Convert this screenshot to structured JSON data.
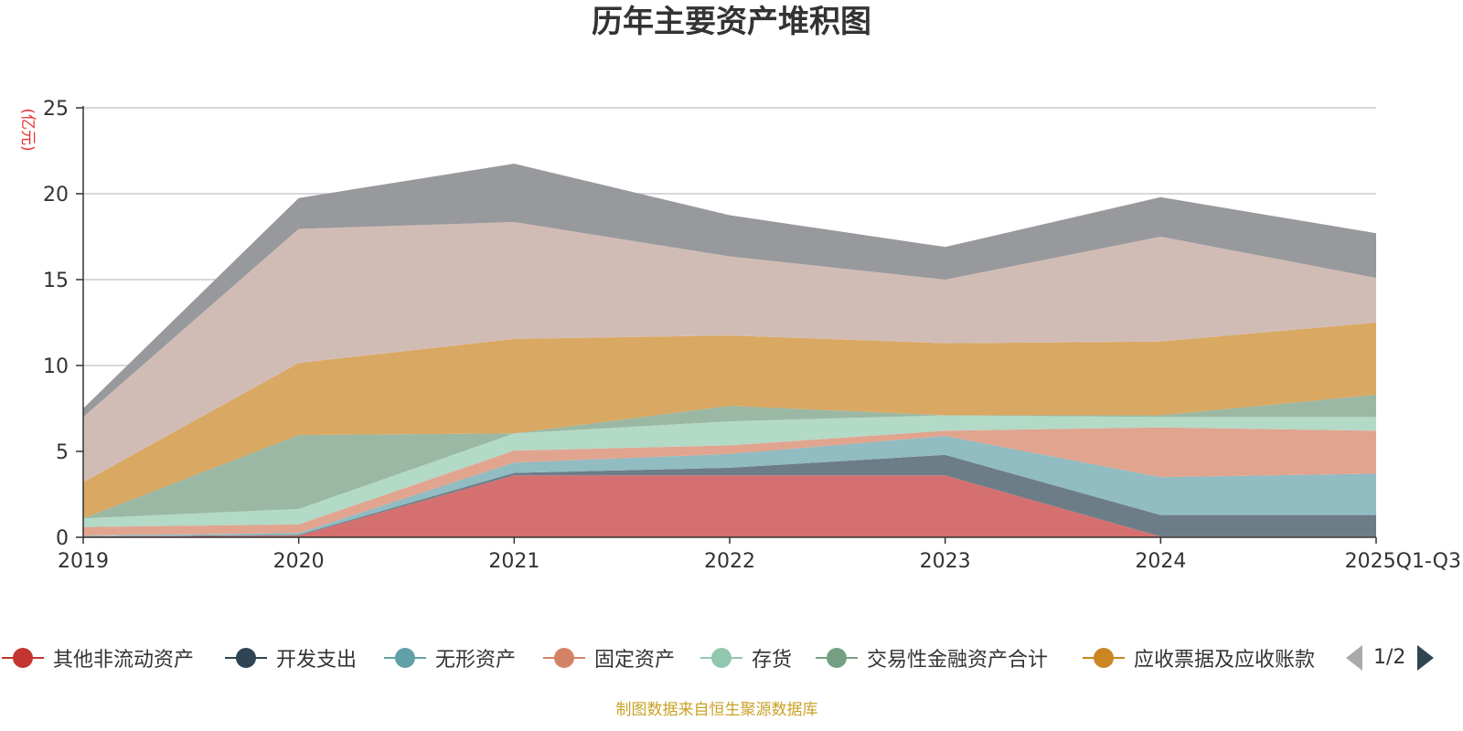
{
  "chart_data": {
    "type": "area",
    "stacked": true,
    "title": "历年主要资产堆积图",
    "ylabel": "(亿元)",
    "xlabel": "",
    "ylim": [
      0,
      25
    ],
    "yticks": [
      0,
      5,
      10,
      15,
      20,
      25
    ],
    "grid": true,
    "categories": [
      "2019",
      "2020",
      "2021",
      "2022",
      "2023",
      "2024",
      "2025Q1-Q3"
    ],
    "series": [
      {
        "name": "其他非流动资产",
        "color": "#c23531",
        "area_color": "#d4706f",
        "values": [
          0.05,
          0.1,
          3.6,
          3.6,
          3.6,
          0.05,
          0.05
        ]
      },
      {
        "name": "开发支出",
        "color": "#2f4554",
        "area_color": "#6d7d88",
        "values": [
          0.0,
          0.05,
          0.15,
          0.45,
          1.2,
          1.25,
          1.25
        ]
      },
      {
        "name": "无形资产",
        "color": "#61a0a8",
        "area_color": "#90bcc2",
        "values": [
          0.05,
          0.1,
          0.6,
          0.8,
          1.1,
          2.2,
          2.4
        ]
      },
      {
        "name": "固定资产",
        "color": "#d48265",
        "area_color": "#e1a48f",
        "values": [
          0.5,
          0.5,
          0.7,
          0.5,
          0.3,
          2.9,
          2.5
        ]
      },
      {
        "name": "存货",
        "color": "#91c7ae",
        "area_color": "#b3d9c7",
        "values": [
          0.5,
          0.9,
          1.0,
          1.4,
          0.9,
          0.6,
          0.8
        ]
      },
      {
        "name": "交易性金融资产合计",
        "color": "#749f83",
        "area_color": "#9ab8a4",
        "values": [
          0.0,
          4.3,
          0.0,
          0.9,
          0.0,
          0.1,
          1.3
        ]
      },
      {
        "name": "应收票据及应收账款",
        "color": "#ca8622",
        "area_color": "#d9a862",
        "values": [
          2.1,
          4.2,
          5.5,
          4.1,
          4.2,
          4.3,
          4.2
        ]
      },
      {
        "name": "",
        "color": "#bda29a",
        "area_color": "#d1bcb5",
        "values": [
          3.8,
          7.8,
          6.8,
          4.6,
          3.7,
          6.1,
          2.6
        ]
      },
      {
        "name": "",
        "color": "#6e7074",
        "area_color": "#98999c",
        "values": [
          0.5,
          1.8,
          3.4,
          2.4,
          1.9,
          2.3,
          2.6
        ]
      }
    ]
  },
  "legend": {
    "items": [
      {
        "label": "其他非流动资产",
        "color": "#c23531"
      },
      {
        "label": "开发支出",
        "color": "#2f4554"
      },
      {
        "label": "无形资产",
        "color": "#61a0a8"
      },
      {
        "label": "固定资产",
        "color": "#d48265"
      },
      {
        "label": "存货",
        "color": "#91c7ae"
      },
      {
        "label": "交易性金融资产合计",
        "color": "#749f83"
      },
      {
        "label": "应收票据及应收账款",
        "color": "#ca8622"
      }
    ],
    "page": "1/2"
  },
  "footer": {
    "source": "制图数据来自恒生聚源数据库"
  }
}
